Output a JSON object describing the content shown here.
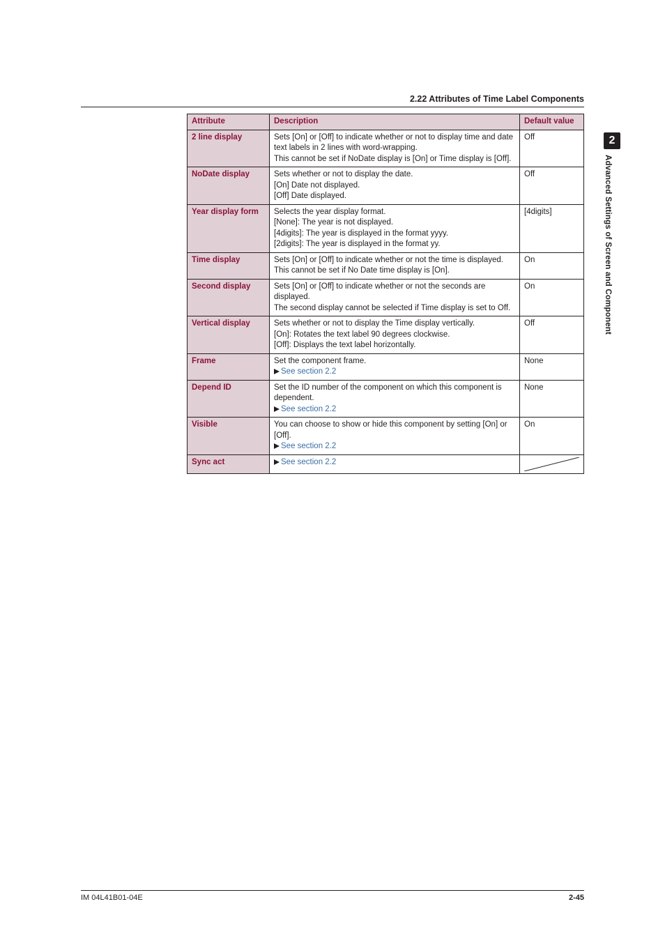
{
  "header": {
    "section_title": "2.22  Attributes of Time Label Components"
  },
  "tab": {
    "number": "2",
    "text": "Advanced Settings of Screen and Component"
  },
  "table": {
    "columns": [
      "Attribute",
      "Description",
      "Default value"
    ],
    "link_text": "See section 2.2",
    "rows": [
      {
        "attr": "2 line display",
        "desc": "Sets [On] or [Off] to indicate whether or not to display time and date text labels in 2 lines with word-wrapping.\nThis cannot be set if NoDate display is [On] or Time display is [Off].",
        "def": "Off"
      },
      {
        "attr": "NoDate display",
        "desc": "Sets whether or not to display the date.\n[On] Date not displayed.\n[Off] Date displayed.",
        "def": "Off"
      },
      {
        "attr": "Year display form",
        "desc": "Selects the year display format.\n[None]: The year is not displayed.\n[4digits]: The year is displayed in the format yyyy.\n[2digits]: The year is displayed in the format yy.",
        "def": "[4digits]"
      },
      {
        "attr": "Time display",
        "desc": "Sets [On] or [Off] to indicate whether or not the time is displayed.\nThis cannot be set if No Date time display is [On].",
        "def": "On"
      },
      {
        "attr": "Second display",
        "desc": "Sets [On] or [Off] to indicate whether or not the seconds are displayed.\nThe second display cannot be selected if Time display is set to Off.",
        "def": "On"
      },
      {
        "attr": "Vertical display",
        "desc": "Sets whether or not to display the Time display vertically.\n[On]: Rotates the text label 90 degrees clockwise.\n[Off]: Displays the text label horizontally.",
        "def": "Off"
      },
      {
        "attr": "Frame",
        "desc": "Set the component frame.",
        "see": true,
        "def": "None"
      },
      {
        "attr": "Depend ID",
        "desc": "Set the ID number of the component on which this component is dependent.",
        "see": true,
        "def": "None"
      },
      {
        "attr": "Visible",
        "desc": "You can choose to show or hide this component by setting [On] or [Off].",
        "see": true,
        "def": "On"
      },
      {
        "attr": "Sync act",
        "desc": "",
        "see": true,
        "def": "__diag__"
      }
    ]
  },
  "footer": {
    "doc_id": "IM 04L41B01-04E",
    "page": "2-45"
  },
  "colors": {
    "header_bg": "#e1cfd6",
    "header_fg": "#8a1538",
    "link": "#3a6ea5",
    "text": "#231f20"
  }
}
